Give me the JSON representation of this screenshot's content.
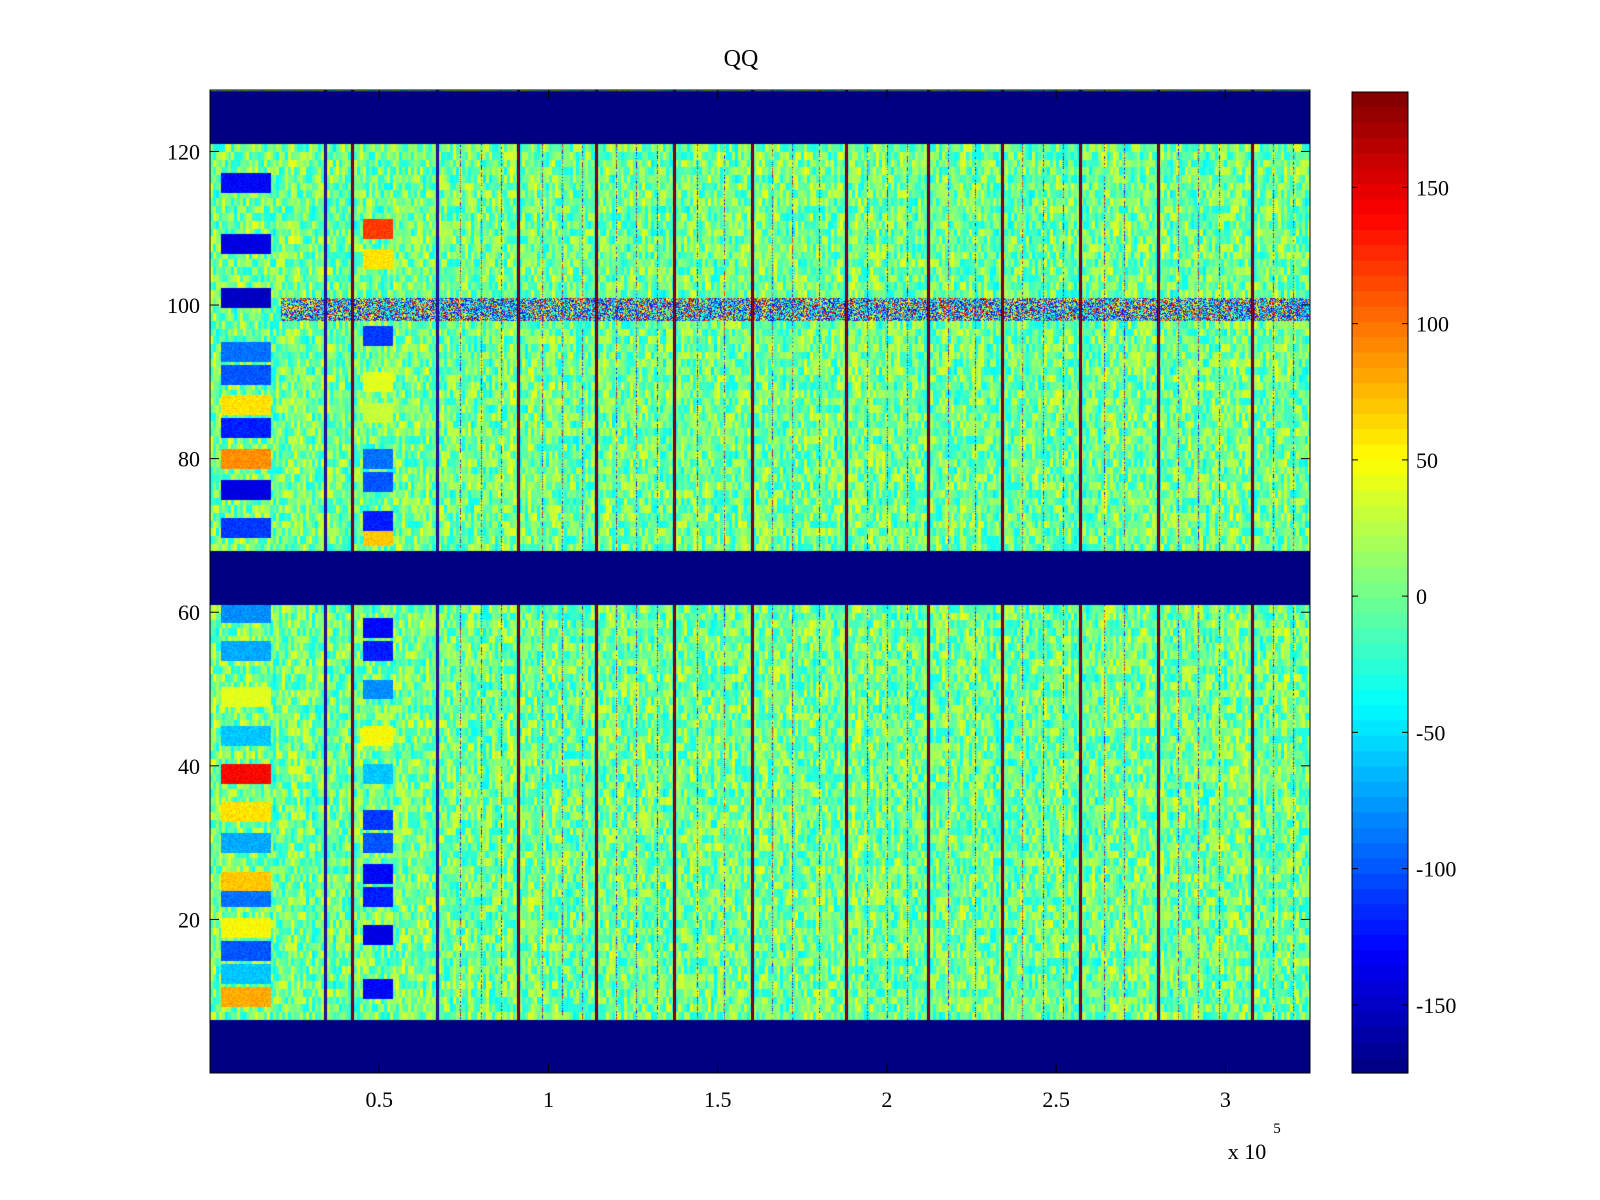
{
  "chart_data": {
    "type": "heatmap",
    "title": "QQ",
    "xlabel": "",
    "ylabel": "",
    "x_multiplier_label": "x 10",
    "x_multiplier_exponent": "5",
    "xlim": [
      0,
      3.25
    ],
    "ylim": [
      0,
      128
    ],
    "x_ticks": [
      0.5,
      1,
      1.5,
      2,
      2.5,
      3
    ],
    "x_tick_labels": [
      "0.5",
      "1",
      "1.5",
      "2",
      "2.5",
      "3"
    ],
    "y_ticks": [
      20,
      40,
      60,
      80,
      100,
      120
    ],
    "y_tick_labels": [
      "20",
      "40",
      "60",
      "80",
      "100",
      "120"
    ],
    "colorbar": {
      "colormap": "jet",
      "range": [
        -175,
        185
      ],
      "ticks": [
        -150,
        -100,
        -50,
        0,
        50,
        100,
        150
      ],
      "tick_labels": [
        "-150",
        "-100",
        "-50",
        "0",
        "50",
        "100",
        "150"
      ]
    },
    "masked_rows": [
      [
        0,
        7
      ],
      [
        61,
        68
      ],
      [
        121,
        128
      ]
    ],
    "masked_value": -175,
    "background_noise_range": [
      -40,
      40
    ],
    "strong_vertical_lines_x": [
      0.34,
      0.42,
      0.67,
      0.91,
      1.14,
      1.37,
      1.6,
      1.88,
      2.12,
      2.34,
      2.57,
      2.8,
      3.08
    ],
    "faint_vertical_lines_x": [
      0.74,
      0.8,
      0.86,
      0.98,
      1.04,
      1.1,
      1.2,
      1.26,
      1.32,
      1.44,
      1.52,
      1.66,
      1.72,
      1.8,
      1.94,
      2.0,
      2.06,
      2.18,
      2.26,
      2.4,
      2.46,
      2.52,
      2.64,
      2.7,
      2.86,
      2.92,
      2.98,
      3.14,
      3.2
    ],
    "highlight_row_y": 99.5,
    "left_band_x": [
      0.03,
      0.18
    ],
    "left_band_rows": [
      {
        "y": 116,
        "value": -130
      },
      {
        "y": 108,
        "value": -140
      },
      {
        "y": 101,
        "value": -150
      },
      {
        "y": 94,
        "value": -90
      },
      {
        "y": 91,
        "value": -100
      },
      {
        "y": 87,
        "value": 60
      },
      {
        "y": 84,
        "value": -120
      },
      {
        "y": 80,
        "value": 90
      },
      {
        "y": 76,
        "value": -140
      },
      {
        "y": 71,
        "value": -110
      },
      {
        "y": 60,
        "value": -80
      },
      {
        "y": 55,
        "value": -70
      },
      {
        "y": 49,
        "value": 40
      },
      {
        "y": 44,
        "value": -60
      },
      {
        "y": 39,
        "value": 140
      },
      {
        "y": 34,
        "value": 60
      },
      {
        "y": 30,
        "value": -70
      },
      {
        "y": 25,
        "value": 70
      },
      {
        "y": 23,
        "value": -90
      },
      {
        "y": 19,
        "value": 50
      },
      {
        "y": 16,
        "value": -100
      },
      {
        "y": 13,
        "value": -60
      },
      {
        "y": 10,
        "value": 80
      }
    ],
    "mid_band_x": [
      0.45,
      0.54
    ],
    "mid_band_rows": [
      {
        "y": 110,
        "value": 120
      },
      {
        "y": 106,
        "value": 60
      },
      {
        "y": 96,
        "value": -110
      },
      {
        "y": 90,
        "value": 40
      },
      {
        "y": 86,
        "value": 30
      },
      {
        "y": 80,
        "value": -90
      },
      {
        "y": 77,
        "value": -100
      },
      {
        "y": 72,
        "value": -120
      },
      {
        "y": 70,
        "value": 70
      },
      {
        "y": 58,
        "value": -130
      },
      {
        "y": 55,
        "value": -120
      },
      {
        "y": 50,
        "value": -80
      },
      {
        "y": 44,
        "value": 50
      },
      {
        "y": 39,
        "value": -60
      },
      {
        "y": 33,
        "value": -110
      },
      {
        "y": 30,
        "value": -100
      },
      {
        "y": 26,
        "value": -130
      },
      {
        "y": 23,
        "value": -120
      },
      {
        "y": 18,
        "value": -140
      },
      {
        "y": 11,
        "value": -130
      }
    ]
  }
}
